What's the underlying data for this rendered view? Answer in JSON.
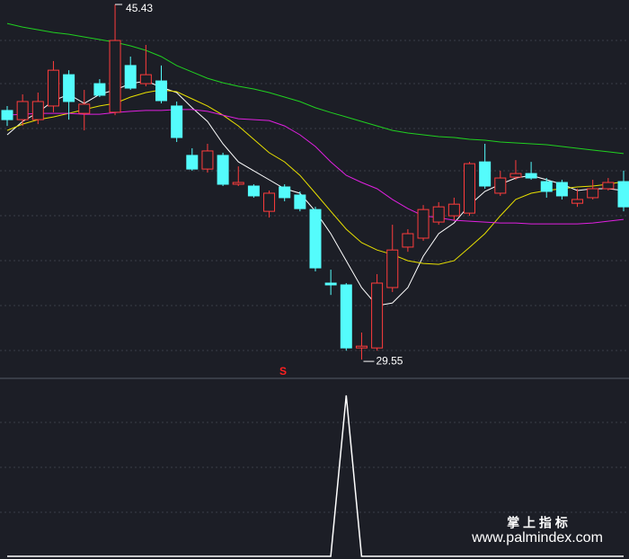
{
  "chart_data": [
    {
      "type": "candlestick",
      "open": [
        40.69,
        40.28,
        40.28,
        40.89,
        42.29,
        40.56,
        41.89,
        40.61,
        42.7,
        41.89,
        42.01,
        40.89,
        38.68,
        38.07,
        38.68,
        37.39,
        37.31,
        36.18,
        37.27,
        36.91,
        36.26,
        32.97,
        32.89,
        30.07,
        30.07,
        32.77,
        34.58,
        34.98,
        35.7,
        35.98,
        36.1,
        38.39,
        36.99,
        37.71,
        37.87,
        37.51,
        37.47,
        36.54,
        36.79,
        37.19,
        37.51
      ],
      "high": [
        40.89,
        41.41,
        41.49,
        42.9,
        42.49,
        41.61,
        42.09,
        45.43,
        43.1,
        43.62,
        42.7,
        41.09,
        39.0,
        39.2,
        38.8,
        38.19,
        37.39,
        37.11,
        37.39,
        37.07,
        36.38,
        33.57,
        32.97,
        30.76,
        33.37,
        35.58,
        35.38,
        36.46,
        36.59,
        36.79,
        38.39,
        39.2,
        37.99,
        38.47,
        38.39,
        37.67,
        37.59,
        37.19,
        37.59,
        37.67,
        38.0
      ],
      "low": [
        40.0,
        40.0,
        40.08,
        40.61,
        40.28,
        39.8,
        41.29,
        40.48,
        41.61,
        41.77,
        41.01,
        39.28,
        37.99,
        37.91,
        37.31,
        37.31,
        36.79,
        35.9,
        36.63,
        36.18,
        33.49,
        32.44,
        29.95,
        29.55,
        29.95,
        32.57,
        34.37,
        34.86,
        35.58,
        35.78,
        35.98,
        37.19,
        36.87,
        37.59,
        37.59,
        36.79,
        36.71,
        36.38,
        36.71,
        37.11,
        36.18
      ],
      "close": [
        40.28,
        41.09,
        41.09,
        42.49,
        41.09,
        40.97,
        41.37,
        43.82,
        41.69,
        42.29,
        41.13,
        39.48,
        38.07,
        38.88,
        37.39,
        37.47,
        36.87,
        36.99,
        36.79,
        36.3,
        33.65,
        32.89,
        30.07,
        30.15,
        32.97,
        34.45,
        35.18,
        36.26,
        36.38,
        36.5,
        38.31,
        37.31,
        37.67,
        37.87,
        37.67,
        37.07,
        36.87,
        36.71,
        37.19,
        37.47,
        36.38
      ],
      "up_color": "#ff3c3c",
      "down_color": "#54fcfc",
      "series": [
        {
          "color": "#ffffff",
          "values": [
            39.6,
            40.2,
            40.6,
            41.13,
            41.41,
            41.01,
            41.41,
            41.61,
            41.89,
            42.01,
            41.73,
            41.49,
            40.81,
            40.2,
            39.2,
            38.39,
            37.99,
            37.59,
            37.19,
            36.99,
            36.18,
            35.18,
            33.97,
            32.77,
            31.96,
            32.08,
            32.77,
            34.17,
            35.18,
            35.66,
            36.46,
            37.07,
            37.39,
            37.67,
            37.79,
            37.59,
            37.39,
            37.11,
            37.19,
            37.19,
            37.11
          ]
        },
        {
          "color": "#e8e000",
          "values": [
            39.8,
            40.08,
            40.28,
            40.4,
            40.56,
            40.73,
            40.89,
            41.01,
            41.29,
            41.49,
            41.61,
            41.53,
            41.21,
            40.89,
            40.48,
            40.0,
            39.4,
            38.8,
            38.39,
            37.79,
            36.99,
            36.18,
            35.38,
            34.78,
            34.45,
            34.25,
            33.97,
            33.85,
            33.81,
            33.97,
            34.57,
            35.18,
            35.98,
            36.71,
            36.99,
            37.11,
            37.19,
            37.27,
            37.31,
            37.39,
            37.51
          ]
        },
        {
          "color": "#e020e0",
          "values": [
            40.48,
            40.52,
            40.56,
            40.56,
            40.56,
            40.52,
            40.52,
            40.6,
            40.65,
            40.69,
            40.69,
            40.73,
            40.73,
            40.65,
            40.48,
            40.32,
            40.28,
            40.24,
            40.0,
            39.6,
            39.08,
            38.39,
            37.79,
            37.47,
            37.19,
            36.71,
            36.3,
            35.98,
            35.9,
            35.78,
            35.74,
            35.7,
            35.66,
            35.66,
            35.62,
            35.62,
            35.62,
            35.62,
            35.66,
            35.74,
            35.82
          ]
        },
        {
          "color": "#20d020",
          "values": [
            44.58,
            44.42,
            44.3,
            44.18,
            44.1,
            43.98,
            43.86,
            43.74,
            43.58,
            43.38,
            43.1,
            42.7,
            42.41,
            42.13,
            41.93,
            41.77,
            41.65,
            41.49,
            41.29,
            41.09,
            40.81,
            40.6,
            40.4,
            40.2,
            40.0,
            39.8,
            39.68,
            39.6,
            39.52,
            39.48,
            39.4,
            39.36,
            39.28,
            39.24,
            39.2,
            39.16,
            39.08,
            39.0,
            38.92,
            38.84,
            38.76
          ]
        }
      ],
      "ylim": [
        28.75,
        45.63
      ],
      "annotations": [
        "45.43",
        "29.55"
      ],
      "signal": "S"
    },
    {
      "type": "line",
      "color": "#ffffff",
      "values": [
        0,
        0,
        0,
        0,
        0,
        0,
        0,
        0,
        0,
        0,
        0,
        0,
        0,
        0,
        0,
        0,
        0,
        0,
        0,
        0,
        0,
        0,
        1,
        0,
        0,
        0,
        0,
        0,
        0,
        0,
        0,
        0,
        0,
        0,
        0,
        0,
        0,
        0,
        0,
        0,
        0
      ],
      "ylim": [
        0,
        1.1
      ]
    }
  ],
  "watermark": {
    "title": "掌 上 指 标",
    "url": "www.palmindex.com"
  }
}
